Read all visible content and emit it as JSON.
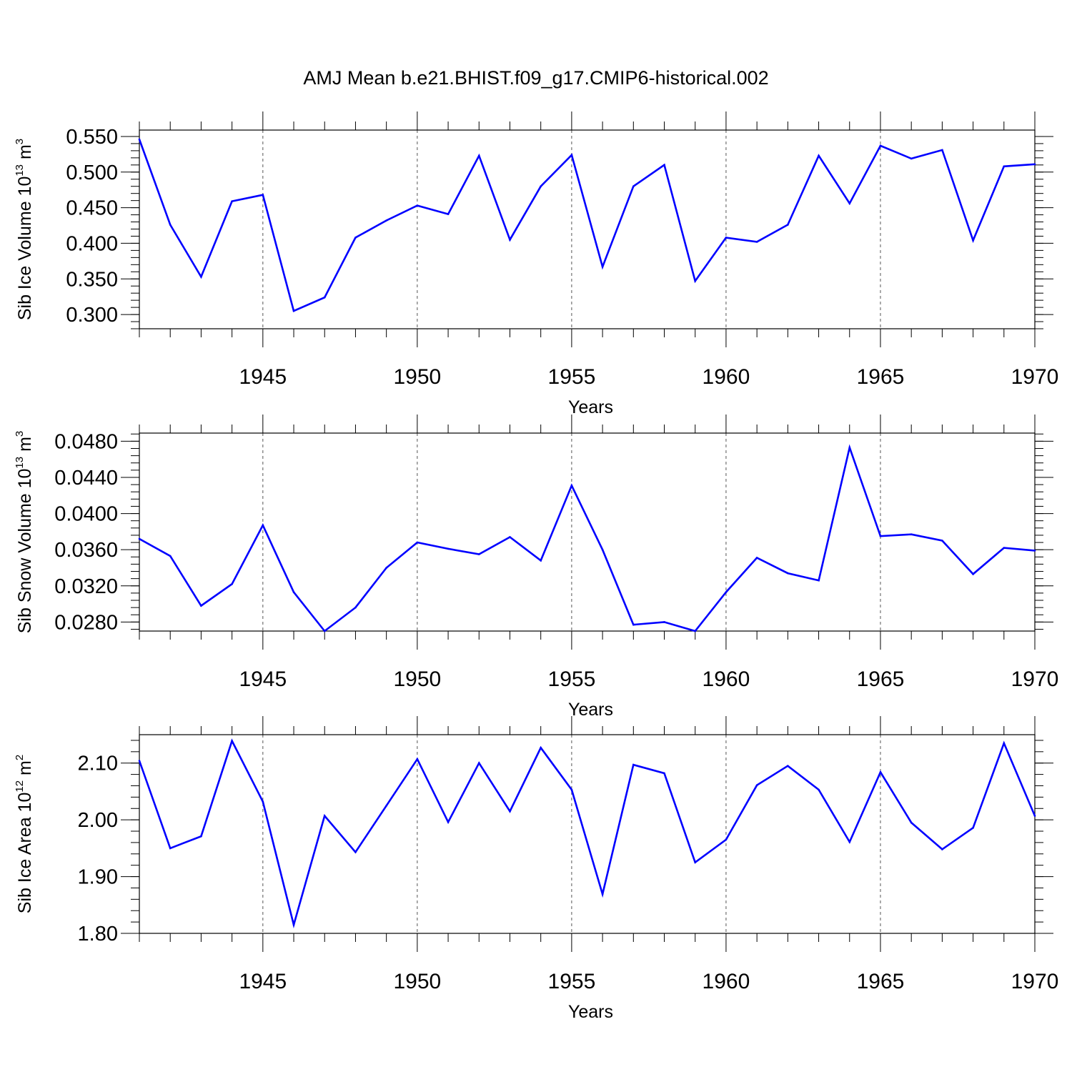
{
  "title": "AMJ Mean b.e21.BHIST.f09_g17.CMIP6-historical.002",
  "colors": {
    "line": "#0000ff",
    "axis": "#000000",
    "grid": "#555555"
  },
  "chart_data": [
    {
      "type": "line",
      "name": "ice-volume",
      "ylabel": "Sib Ice Volume 10",
      "ylabel_exp": "13",
      "ylabel_unit": " m",
      "ylabel_unit_exp": "3",
      "xlabel": "Years",
      "xlim": [
        1941,
        1970
      ],
      "ylim": [
        0.28,
        0.559
      ],
      "yticks": [
        0.3,
        0.35,
        0.4,
        0.45,
        0.5,
        0.55
      ],
      "ytick_labels": [
        "0.300",
        "0.350",
        "0.400",
        "0.450",
        "0.500",
        "0.550"
      ],
      "yminor_step": 0.01,
      "xticks": [
        1945,
        1950,
        1955,
        1960,
        1965,
        1970
      ],
      "xtick_labels": [
        "1945",
        "1950",
        "1955",
        "1960",
        "1965",
        "1970"
      ],
      "grid_x": [
        1945,
        1950,
        1955,
        1960,
        1965
      ],
      "x": [
        1941,
        1942,
        1943,
        1944,
        1945,
        1946,
        1947,
        1948,
        1949,
        1950,
        1951,
        1952,
        1953,
        1954,
        1955,
        1956,
        1957,
        1958,
        1959,
        1960,
        1961,
        1962,
        1963,
        1964,
        1965,
        1966,
        1967,
        1968,
        1969,
        1970
      ],
      "y": [
        0.546,
        0.426,
        0.353,
        0.459,
        0.468,
        0.305,
        0.324,
        0.408,
        0.432,
        0.453,
        0.441,
        0.523,
        0.405,
        0.48,
        0.524,
        0.367,
        0.48,
        0.51,
        0.347,
        0.408,
        0.402,
        0.426,
        0.523,
        0.456,
        0.537,
        0.519,
        0.531,
        0.404,
        0.508,
        0.511
      ]
    },
    {
      "type": "line",
      "name": "snow-volume",
      "ylabel": "Sib Snow Volume 10",
      "ylabel_exp": "13",
      "ylabel_unit": " m",
      "ylabel_unit_exp": "3",
      "xlabel": "Years",
      "xlim": [
        1941,
        1970
      ],
      "ylim": [
        0.027,
        0.0489
      ],
      "yticks": [
        0.028,
        0.032,
        0.036,
        0.04,
        0.044,
        0.048
      ],
      "ytick_labels": [
        "0.0280",
        "0.0320",
        "0.0360",
        "0.0400",
        "0.0440",
        "0.0480"
      ],
      "yminor_step": 0.0008,
      "xticks": [
        1945,
        1950,
        1955,
        1960,
        1965,
        1970
      ],
      "xtick_labels": [
        "1945",
        "1950",
        "1955",
        "1960",
        "1965",
        "1970"
      ],
      "grid_x": [
        1945,
        1950,
        1955,
        1960,
        1965
      ],
      "x": [
        1941,
        1942,
        1943,
        1944,
        1945,
        1946,
        1947,
        1948,
        1949,
        1950,
        1951,
        1952,
        1953,
        1954,
        1955,
        1956,
        1957,
        1958,
        1959,
        1960,
        1961,
        1962,
        1963,
        1964,
        1965,
        1966,
        1967,
        1968,
        1969,
        1970
      ],
      "y": [
        0.0372,
        0.0353,
        0.0298,
        0.0322,
        0.0387,
        0.0313,
        0.027,
        0.0296,
        0.034,
        0.0368,
        0.0361,
        0.0355,
        0.0374,
        0.0348,
        0.0431,
        0.036,
        0.0277,
        0.028,
        0.027,
        0.0313,
        0.0351,
        0.0334,
        0.0326,
        0.0473,
        0.0375,
        0.0377,
        0.037,
        0.0333,
        0.0362,
        0.0359
      ]
    },
    {
      "type": "line",
      "name": "ice-area",
      "ylabel": "Sib Ice Area 10",
      "ylabel_exp": "12",
      "ylabel_unit": " m",
      "ylabel_unit_exp": "2",
      "xlabel": "Years",
      "xlim": [
        1941,
        1970
      ],
      "ylim": [
        1.8,
        2.15
      ],
      "yticks": [
        1.8,
        1.9,
        2.0,
        2.1
      ],
      "ytick_labels": [
        "1.80",
        "1.90",
        "2.00",
        "2.10"
      ],
      "yminor_step": 0.02,
      "xticks": [
        1945,
        1950,
        1955,
        1960,
        1965,
        1970
      ],
      "xtick_labels": [
        "1945",
        "1950",
        "1955",
        "1960",
        "1965",
        "1970"
      ],
      "grid_x": [
        1945,
        1950,
        1955,
        1960,
        1965
      ],
      "x": [
        1941,
        1942,
        1943,
        1944,
        1945,
        1946,
        1947,
        1948,
        1949,
        1950,
        1951,
        1952,
        1953,
        1954,
        1955,
        1956,
        1957,
        1958,
        1959,
        1960,
        1961,
        1962,
        1963,
        1964,
        1965,
        1966,
        1967,
        1968,
        1969,
        1970
      ],
      "y": [
        2.104,
        1.95,
        1.971,
        2.139,
        2.032,
        1.815,
        2.007,
        1.943,
        2.025,
        2.107,
        1.996,
        2.1,
        2.015,
        2.127,
        2.053,
        1.869,
        2.097,
        2.082,
        1.925,
        1.965,
        2.061,
        2.095,
        2.053,
        1.961,
        2.084,
        1.995,
        1.948,
        1.986,
        2.135,
        2.007
      ]
    }
  ]
}
